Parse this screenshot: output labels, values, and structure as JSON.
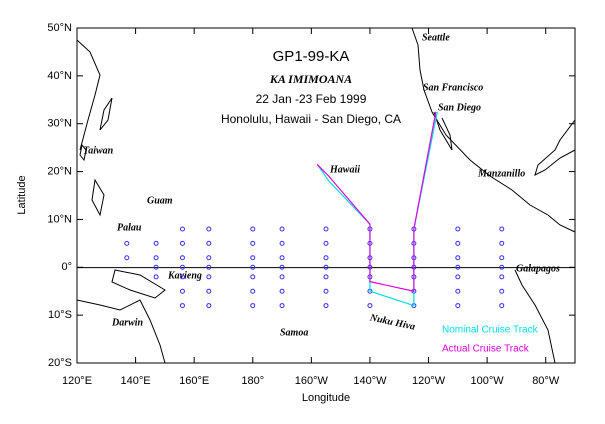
{
  "map": {
    "title": "GP1-99-KA",
    "ship": "KA IMIMOANA",
    "dates": "22 Jan -23 Feb 1999",
    "route": "Honolulu, Hawaii - San Diego, CA",
    "x_label": "Longitude",
    "y_label": "Latitude",
    "xlim": [
      120,
      290
    ],
    "ylim": [
      -20,
      50
    ],
    "xticks": [
      {
        "value": 120,
        "label": "120°E"
      },
      {
        "value": 140,
        "label": "140°E"
      },
      {
        "value": 160,
        "label": "160°E"
      },
      {
        "value": 180,
        "label": "180°"
      },
      {
        "value": 200,
        "label": "160°W"
      },
      {
        "value": 220,
        "label": "140°W"
      },
      {
        "value": 240,
        "label": "120°W"
      },
      {
        "value": 260,
        "label": "100°W"
      },
      {
        "value": 280,
        "label": "80°W"
      }
    ],
    "yticks": [
      {
        "value": -20,
        "label": "20°S"
      },
      {
        "value": -10,
        "label": "10°S"
      },
      {
        "value": 0,
        "label": "0°"
      },
      {
        "value": 10,
        "label": "10°N"
      },
      {
        "value": 20,
        "label": "20°N"
      },
      {
        "value": 30,
        "label": "30°N"
      },
      {
        "value": 40,
        "label": "40°N"
      },
      {
        "value": 50,
        "label": "50°N"
      }
    ],
    "places": [
      "Seattle",
      "San Francisco",
      "San Diego",
      "Hawaii",
      "Manzanillo",
      "Taiwan",
      "Guam",
      "Palau",
      "Kavieng",
      "Darwin",
      "Samoa",
      "Nuku Hiva",
      "Galapagos"
    ],
    "buoy_lines": [
      {
        "lon": 137,
        "lats": [
          5,
          2
        ]
      },
      {
        "lon": 147,
        "lats": [
          5,
          2,
          0,
          -2
        ]
      },
      {
        "lon": 156,
        "lats": [
          8,
          5,
          2,
          0,
          -2,
          -5,
          -8
        ]
      },
      {
        "lon": 165,
        "lats": [
          8,
          5,
          2,
          0,
          -2,
          -5,
          -8
        ]
      },
      {
        "lon": 180,
        "lats": [
          8,
          5,
          2,
          0,
          -2,
          -5,
          -8
        ]
      },
      {
        "lon": 190,
        "lats": [
          8,
          5,
          2,
          0,
          -2,
          -5,
          -8
        ]
      },
      {
        "lon": 205,
        "lats": [
          8,
          5,
          2,
          0,
          -2,
          -5,
          -8
        ]
      },
      {
        "lon": 220,
        "lats": [
          8,
          5,
          2,
          0,
          -2,
          -5,
          -8
        ]
      },
      {
        "lon": 235,
        "lats": [
          8,
          5,
          2,
          0,
          -2,
          -5,
          -8
        ]
      },
      {
        "lon": 250,
        "lats": [
          8,
          5,
          2,
          0,
          -2,
          -5,
          -8
        ]
      },
      {
        "lon": 265,
        "lats": [
          8,
          5,
          2,
          0,
          -2,
          -5,
          -8
        ]
      }
    ],
    "tracks": [
      {
        "name": "Nominal Cruise Track",
        "color": "#00e0e0",
        "lon": [
          202,
          206,
          220,
          220,
          235,
          235,
          243
        ],
        "lat": [
          21.5,
          18,
          9,
          -5,
          -8,
          8,
          32.5
        ]
      },
      {
        "name": "Actual Cruise Track",
        "color": "#e000e0",
        "lon": [
          202,
          206,
          220,
          220,
          235,
          235,
          242.5
        ],
        "lat": [
          21.5,
          19,
          9,
          -3,
          -5,
          8,
          32.5
        ]
      }
    ]
  }
}
